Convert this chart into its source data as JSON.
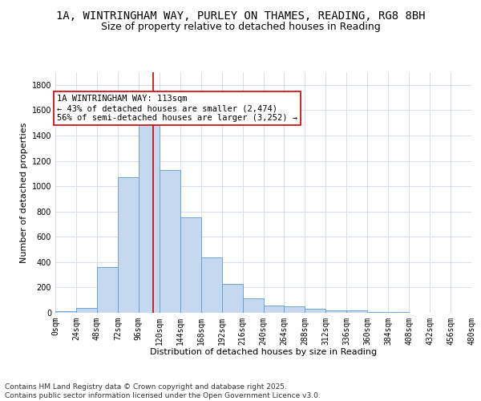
{
  "title_line1": "1A, WINTRINGHAM WAY, PURLEY ON THAMES, READING, RG8 8BH",
  "title_line2": "Size of property relative to detached houses in Reading",
  "xlabel": "Distribution of detached houses by size in Reading",
  "ylabel": "Number of detached properties",
  "bin_edges": [
    0,
    24,
    48,
    72,
    96,
    120,
    144,
    168,
    192,
    216,
    240,
    264,
    288,
    312,
    336,
    360,
    384,
    408,
    432,
    456,
    480
  ],
  "bar_heights": [
    10,
    35,
    360,
    1070,
    1500,
    1130,
    755,
    440,
    225,
    115,
    60,
    50,
    30,
    20,
    20,
    5,
    5,
    3,
    2,
    2
  ],
  "bar_color": "#c5d8f0",
  "bar_edgecolor": "#5b9bd5",
  "vline_x": 113,
  "vline_color": "#cc0000",
  "annotation_text": "1A WINTRINGHAM WAY: 113sqm\n← 43% of detached houses are smaller (2,474)\n56% of semi-detached houses are larger (3,252) →",
  "annotation_box_edgecolor": "#cc0000",
  "annotation_box_facecolor": "#ffffff",
  "ylim": [
    0,
    1900
  ],
  "yticks": [
    0,
    200,
    400,
    600,
    800,
    1000,
    1200,
    1400,
    1600,
    1800
  ],
  "xtick_labels": [
    "0sqm",
    "24sqm",
    "48sqm",
    "72sqm",
    "96sqm",
    "120sqm",
    "144sqm",
    "168sqm",
    "192sqm",
    "216sqm",
    "240sqm",
    "264sqm",
    "288sqm",
    "312sqm",
    "336sqm",
    "360sqm",
    "384sqm",
    "408sqm",
    "432sqm",
    "456sqm",
    "480sqm"
  ],
  "background_color": "#ffffff",
  "grid_color": "#d0d8e8",
  "footer_text": "Contains HM Land Registry data © Crown copyright and database right 2025.\nContains public sector information licensed under the Open Government Licence v3.0.",
  "title_fontsize": 10,
  "subtitle_fontsize": 9,
  "axis_label_fontsize": 8,
  "tick_fontsize": 7,
  "annotation_fontsize": 7.5,
  "footer_fontsize": 6.5
}
